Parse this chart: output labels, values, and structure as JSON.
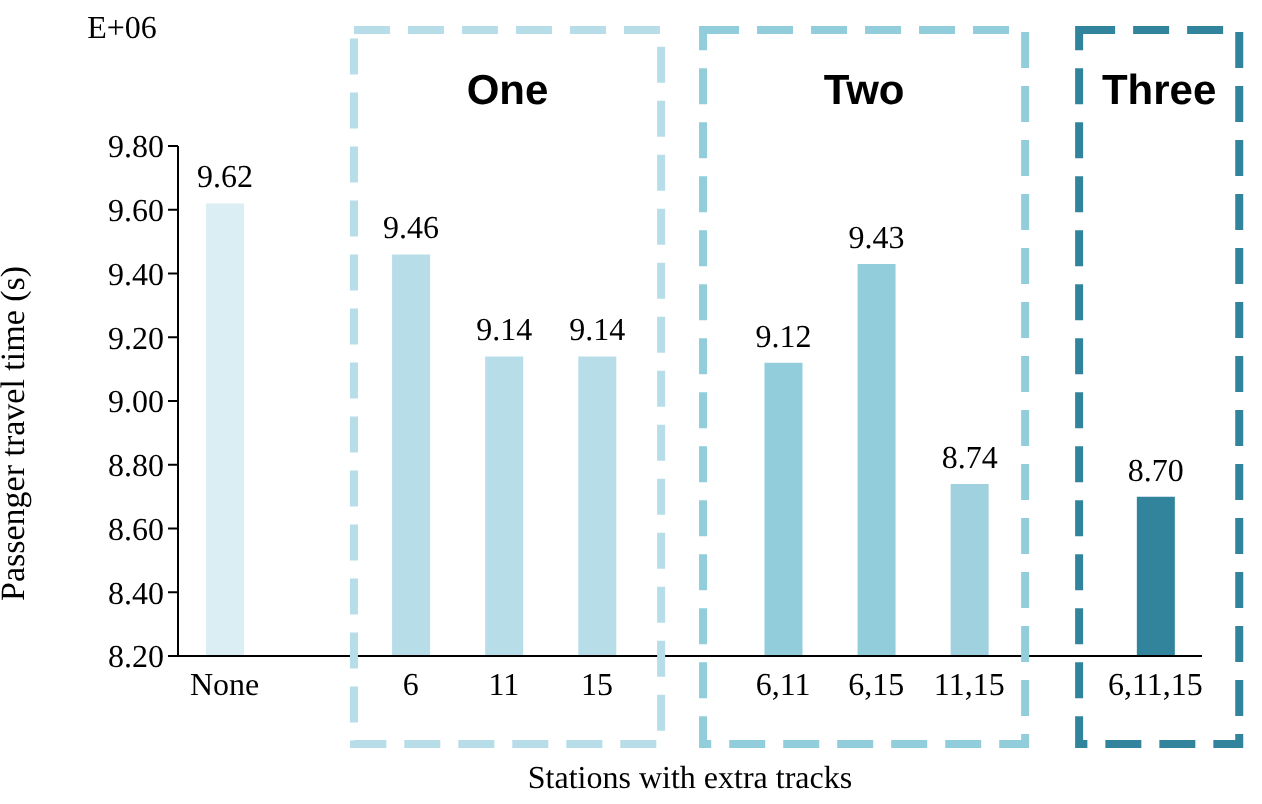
{
  "chart_data": {
    "type": "bar",
    "xlabel": "Stations with extra tracks",
    "ylabel": "Passenger travel time (s)",
    "categories": [
      "None",
      null,
      "6",
      "11",
      "15",
      null,
      "6,11",
      "6,15",
      "11,15",
      null,
      "6,11,15"
    ],
    "values": [
      9.62,
      null,
      9.46,
      9.14,
      9.14,
      null,
      9.12,
      9.43,
      8.74,
      null,
      8.7
    ],
    "colors": [
      "#daeef3",
      "#ffffff",
      "#b7dde8",
      "#b7dde8",
      "#b7dde8",
      "#ffffff",
      "#92cddc",
      "#92cddc",
      "#9fd2de",
      "#ffffff",
      "#31849b"
    ],
    "value_labels": [
      "9.62",
      null,
      "9.46",
      "9.14",
      "9.14",
      null,
      "9.12",
      "9.43",
      "8.74",
      null,
      "8.70"
    ],
    "ylim": [
      8.2,
      9.8
    ],
    "yticks": [
      {
        "value": 8.2,
        "label": "8.20"
      },
      {
        "value": 8.4,
        "label": "8.40"
      },
      {
        "value": 8.6,
        "label": "8.60"
      },
      {
        "value": 8.8,
        "label": "8.80"
      },
      {
        "value": 9.0,
        "label": "9.00"
      },
      {
        "value": 9.2,
        "label": "9.20"
      },
      {
        "value": 9.4,
        "label": "9.40"
      },
      {
        "value": 9.6,
        "label": "9.60"
      },
      {
        "value": 9.8,
        "label": "9.80"
      }
    ],
    "annotations": [
      "E+06",
      "One",
      "Two",
      "Three"
    ],
    "grid": false,
    "legend": false
  }
}
